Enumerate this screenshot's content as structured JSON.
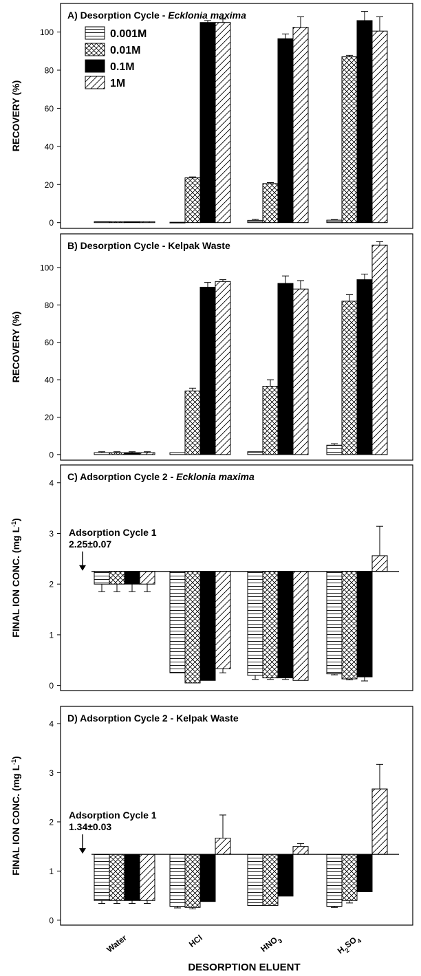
{
  "figure": {
    "xlabel": "DESORPTION ELUENT"
  },
  "legend": [
    "0.001M",
    "0.01M",
    "0.1M",
    "1M"
  ],
  "chart_data": [
    {
      "type": "bar",
      "title_prefix": "A) Desorption Cycle - ",
      "title_italic": "Ecklonia maxima",
      "ylabel": "RECOVERY (%)",
      "ylim": [
        -3,
        115
      ],
      "yticks": [
        0,
        20,
        40,
        60,
        80,
        100
      ],
      "categories": [
        "Water",
        "HCl",
        "HNO3",
        "H2SO4"
      ],
      "series": [
        {
          "name": "0.001M",
          "values": [
            0.5,
            0.2,
            1.2,
            1.3
          ],
          "errors": [
            0,
            0,
            0.5,
            0.3
          ]
        },
        {
          "name": "0.01M",
          "values": [
            0.5,
            23.5,
            20.5,
            87.0
          ],
          "errors": [
            0,
            0.5,
            0.5,
            0.8
          ]
        },
        {
          "name": "0.1M",
          "values": [
            0.5,
            105.0,
            96.5,
            106.0
          ],
          "errors": [
            0,
            1.0,
            2.5,
            4.8
          ]
        },
        {
          "name": "1M",
          "values": [
            0.5,
            105.0,
            102.5,
            100.5
          ],
          "errors": [
            0,
            1.8,
            5.5,
            7.5
          ]
        }
      ],
      "show_legend": true
    },
    {
      "type": "bar",
      "title_prefix": "B) Desorption Cycle - Kelpak Waste",
      "title_italic": "",
      "ylabel": "RECOVERY (%)",
      "ylim": [
        -3,
        118
      ],
      "yticks": [
        0,
        20,
        40,
        60,
        80,
        100
      ],
      "categories": [
        "Water",
        "HCl",
        "HNO3",
        "H2SO4"
      ],
      "series": [
        {
          "name": "0.001M",
          "values": [
            1.0,
            1.0,
            1.5,
            5.0
          ],
          "errors": [
            0.5,
            0,
            0,
            0.8
          ]
        },
        {
          "name": "0.01M",
          "values": [
            1.0,
            34.0,
            36.5,
            82.0
          ],
          "errors": [
            0.5,
            1.5,
            3.5,
            3.5
          ]
        },
        {
          "name": "0.1M",
          "values": [
            1.0,
            89.5,
            91.5,
            93.5
          ],
          "errors": [
            0.5,
            2.5,
            4.0,
            3.0
          ]
        },
        {
          "name": "1M",
          "values": [
            1.0,
            92.5,
            88.5,
            112.0
          ],
          "errors": [
            0.5,
            1.0,
            4.5,
            1.8
          ]
        }
      ],
      "show_legend": false
    },
    {
      "type": "bar",
      "title_prefix": "C) Adsorption Cycle 2 - ",
      "title_italic": "Ecklonia maxima",
      "ylabel": "FINAL ION CONC. (mg L",
      "ylabel_sup": "-1",
      "ylim": [
        -0.1,
        4.35
      ],
      "yticks": [
        0,
        1,
        2,
        3,
        4
      ],
      "baseline": 2.25,
      "annotation": [
        "Adsorption Cycle 1",
        "2.25±0.07"
      ],
      "categories": [
        "Water",
        "HCl",
        "HNO3",
        "H2SO4"
      ],
      "series": [
        {
          "name": "0.001M",
          "values": [
            2.0,
            0.25,
            0.2,
            0.23
          ],
          "errors": [
            0.15,
            0,
            0.08,
            0.02
          ]
        },
        {
          "name": "0.01M",
          "values": [
            2.0,
            0.05,
            0.15,
            0.13
          ],
          "errors": [
            0.15,
            0,
            0.03,
            0.02
          ]
        },
        {
          "name": "0.1M",
          "values": [
            2.0,
            0.1,
            0.15,
            0.17
          ],
          "errors": [
            0.15,
            0,
            0.03,
            0.08
          ]
        },
        {
          "name": "1M",
          "values": [
            2.0,
            0.33,
            0.1,
            2.56
          ],
          "errors": [
            0.15,
            0.08,
            0,
            0.58
          ]
        }
      ],
      "show_legend": false
    },
    {
      "type": "bar",
      "title_prefix": "D) Adsorption Cycle 2 - Kelpak Waste",
      "title_italic": "",
      "ylabel": "FINAL ION CONC. (mg L",
      "ylabel_sup": "-1",
      "ylim": [
        -0.1,
        4.35
      ],
      "yticks": [
        0,
        1,
        2,
        3,
        4
      ],
      "baseline": 1.34,
      "annotation": [
        "Adsorption Cycle 1",
        "1.34±0.03"
      ],
      "categories": [
        "Water",
        "HCl",
        "HNO3",
        "H2SO4"
      ],
      "series": [
        {
          "name": "0.001M",
          "values": [
            0.4,
            0.28,
            0.3,
            0.28
          ],
          "errors": [
            0.06,
            0.03,
            0,
            0.02
          ]
        },
        {
          "name": "0.01M",
          "values": [
            0.4,
            0.26,
            0.3,
            0.4
          ],
          "errors": [
            0.06,
            0.03,
            0,
            0.05
          ]
        },
        {
          "name": "0.1M",
          "values": [
            0.4,
            0.38,
            0.49,
            0.58
          ],
          "errors": [
            0.06,
            0,
            0,
            0
          ]
        },
        {
          "name": "1M",
          "values": [
            0.4,
            1.67,
            1.5,
            2.67
          ],
          "errors": [
            0.06,
            0.47,
            0.06,
            0.5
          ]
        }
      ],
      "show_legend": false
    }
  ]
}
